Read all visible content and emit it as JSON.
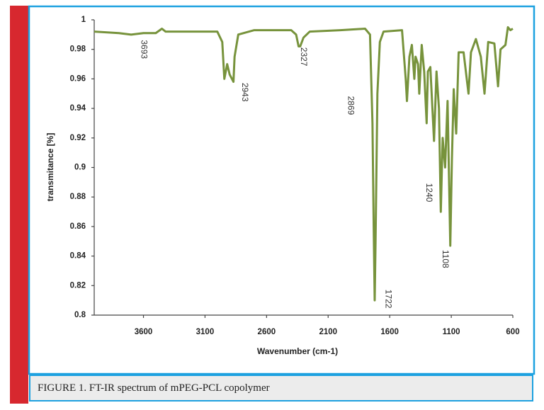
{
  "chart_data": {
    "type": "line",
    "xlabel": "Wavenumber (cm-1)",
    "ylabel": "transmitance [%]",
    "caption": "FIGURE 1. FT-IR spectrum of mPEG-PCL copolymer",
    "color": "#77933c",
    "xlim": [
      4000,
      600
    ],
    "xticks": [
      3600,
      3100,
      2600,
      2100,
      1600,
      1100,
      600
    ],
    "ylim": [
      0.8,
      1
    ],
    "yticks": [
      0.8,
      0.82,
      0.84,
      0.86,
      0.88,
      0.9,
      0.92,
      0.94,
      0.96,
      0.98,
      1
    ],
    "x": [
      4000,
      3800,
      3700,
      3600,
      3500,
      3450,
      3420,
      3300,
      3000,
      2960,
      2943,
      2920,
      2900,
      2869,
      2860,
      2830,
      2700,
      2400,
      2360,
      2340,
      2327,
      2300,
      2250,
      2000,
      1800,
      1760,
      1740,
      1730,
      1722,
      1715,
      1700,
      1680,
      1650,
      1500,
      1470,
      1460,
      1440,
      1420,
      1400,
      1390,
      1370,
      1360,
      1340,
      1320,
      1300,
      1290,
      1270,
      1240,
      1220,
      1200,
      1185,
      1170,
      1150,
      1130,
      1108,
      1095,
      1080,
      1060,
      1040,
      1000,
      960,
      940,
      900,
      860,
      830,
      800,
      750,
      720,
      700,
      660,
      640,
      620,
      600
    ],
    "values": [
      0.992,
      0.991,
      0.99,
      0.991,
      0.991,
      0.994,
      0.992,
      0.992,
      0.992,
      0.985,
      0.96,
      0.97,
      0.963,
      0.958,
      0.975,
      0.99,
      0.993,
      0.993,
      0.99,
      0.982,
      0.982,
      0.988,
      0.992,
      0.993,
      0.994,
      0.99,
      0.93,
      0.86,
      0.81,
      0.85,
      0.95,
      0.985,
      0.992,
      0.993,
      0.96,
      0.945,
      0.975,
      0.983,
      0.96,
      0.975,
      0.97,
      0.95,
      0.983,
      0.965,
      0.93,
      0.965,
      0.968,
      0.918,
      0.965,
      0.94,
      0.87,
      0.92,
      0.9,
      0.945,
      0.847,
      0.905,
      0.953,
      0.923,
      0.978,
      0.978,
      0.95,
      0.978,
      0.987,
      0.975,
      0.95,
      0.985,
      0.984,
      0.955,
      0.98,
      0.983,
      0.995,
      0.993,
      0.994
    ],
    "annotations": [
      {
        "text": "3693",
        "x": 3600,
        "y": 0.98
      },
      {
        "text": "2943",
        "x": 2780,
        "y": 0.951
      },
      {
        "text": "2327",
        "x": 2303,
        "y": 0.975
      },
      {
        "text": "2869",
        "x": 1918,
        "y": 0.942
      },
      {
        "text": "1722",
        "x": 1613,
        "y": 0.811
      },
      {
        "text": "1240",
        "x": 1285,
        "y": 0.883
      },
      {
        "text": "1108",
        "x": 1152,
        "y": 0.838
      }
    ]
  }
}
